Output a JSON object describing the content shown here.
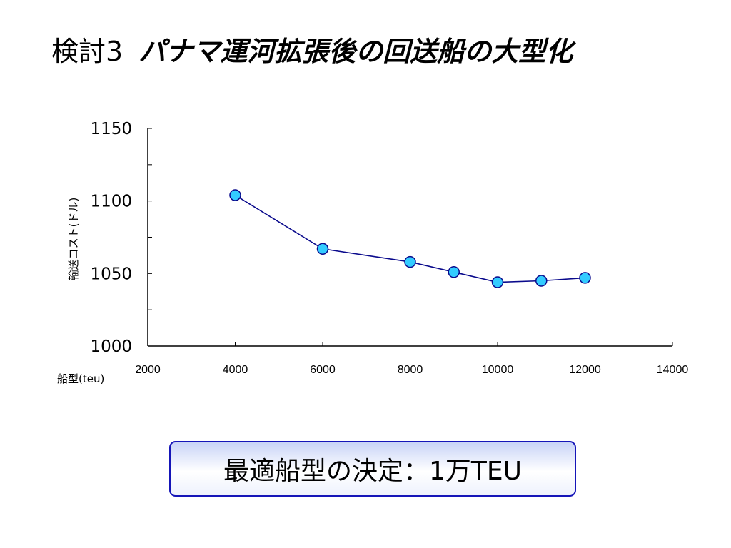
{
  "slide": {
    "title_prefix": "検討3",
    "title_main": "パナマ運河拡張後の回送船の大型化",
    "conclusion": "最適船型の決定：1万TEU"
  },
  "colors": {
    "line": "#0a0a8c",
    "marker_fill": "#33ccff",
    "marker_stroke": "#0a0a8c",
    "box_border": "#1515b8"
  },
  "chart_data": {
    "type": "line",
    "title": "",
    "xlabel": "船型(teu)",
    "ylabel": "輸送コスト(ドル)",
    "xlim": [
      2000,
      14000
    ],
    "ylim": [
      1000,
      1150
    ],
    "x_ticks": [
      "2000",
      "4000",
      "6000",
      "8000",
      "10000",
      "12000",
      "14000"
    ],
    "y_ticks": [
      "1000",
      "1050",
      "1100",
      "1150"
    ],
    "grid": false,
    "legend": "none",
    "series": [
      {
        "x": [
          4000,
          6000,
          8000,
          9000,
          10000,
          11000,
          12000
        ],
        "y": [
          1104,
          1067,
          1058,
          1051,
          1044,
          1045,
          1047
        ]
      }
    ]
  }
}
